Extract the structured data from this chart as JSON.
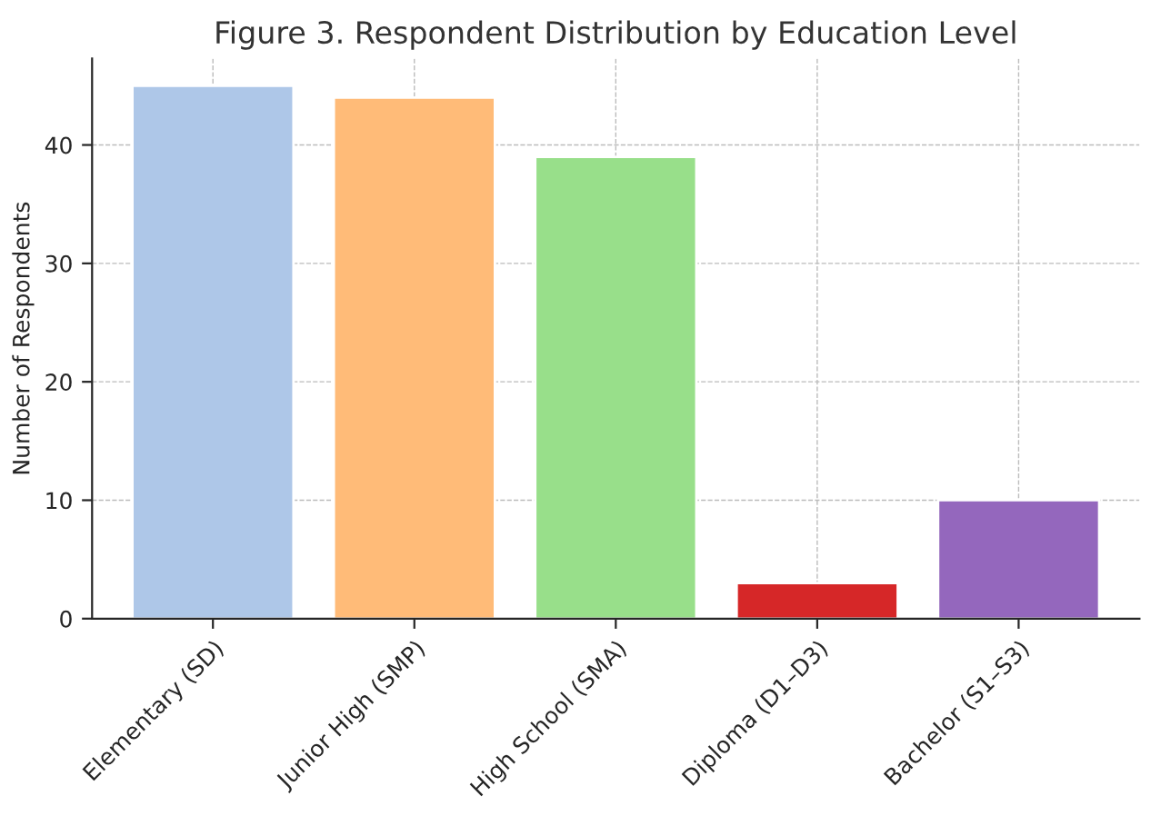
{
  "chart_data": {
    "type": "bar",
    "title": "Figure 3. Respondent Distribution by Education Level",
    "ylabel": "Number of Respondents",
    "categories": [
      "Elementary (SD)",
      "Junior High (SMP)",
      "High School (SMA)",
      "Diploma (D1–D3)",
      "Bachelor (S1–S3)"
    ],
    "values": [
      45,
      44,
      39,
      3,
      10
    ],
    "colors": [
      "#aec7e8",
      "#ffbb78",
      "#98df8a",
      "#d62728",
      "#9467bd"
    ],
    "ylim": [
      0,
      47.3
    ],
    "yticks": [
      0,
      10,
      20,
      30,
      40
    ],
    "grid": true
  }
}
